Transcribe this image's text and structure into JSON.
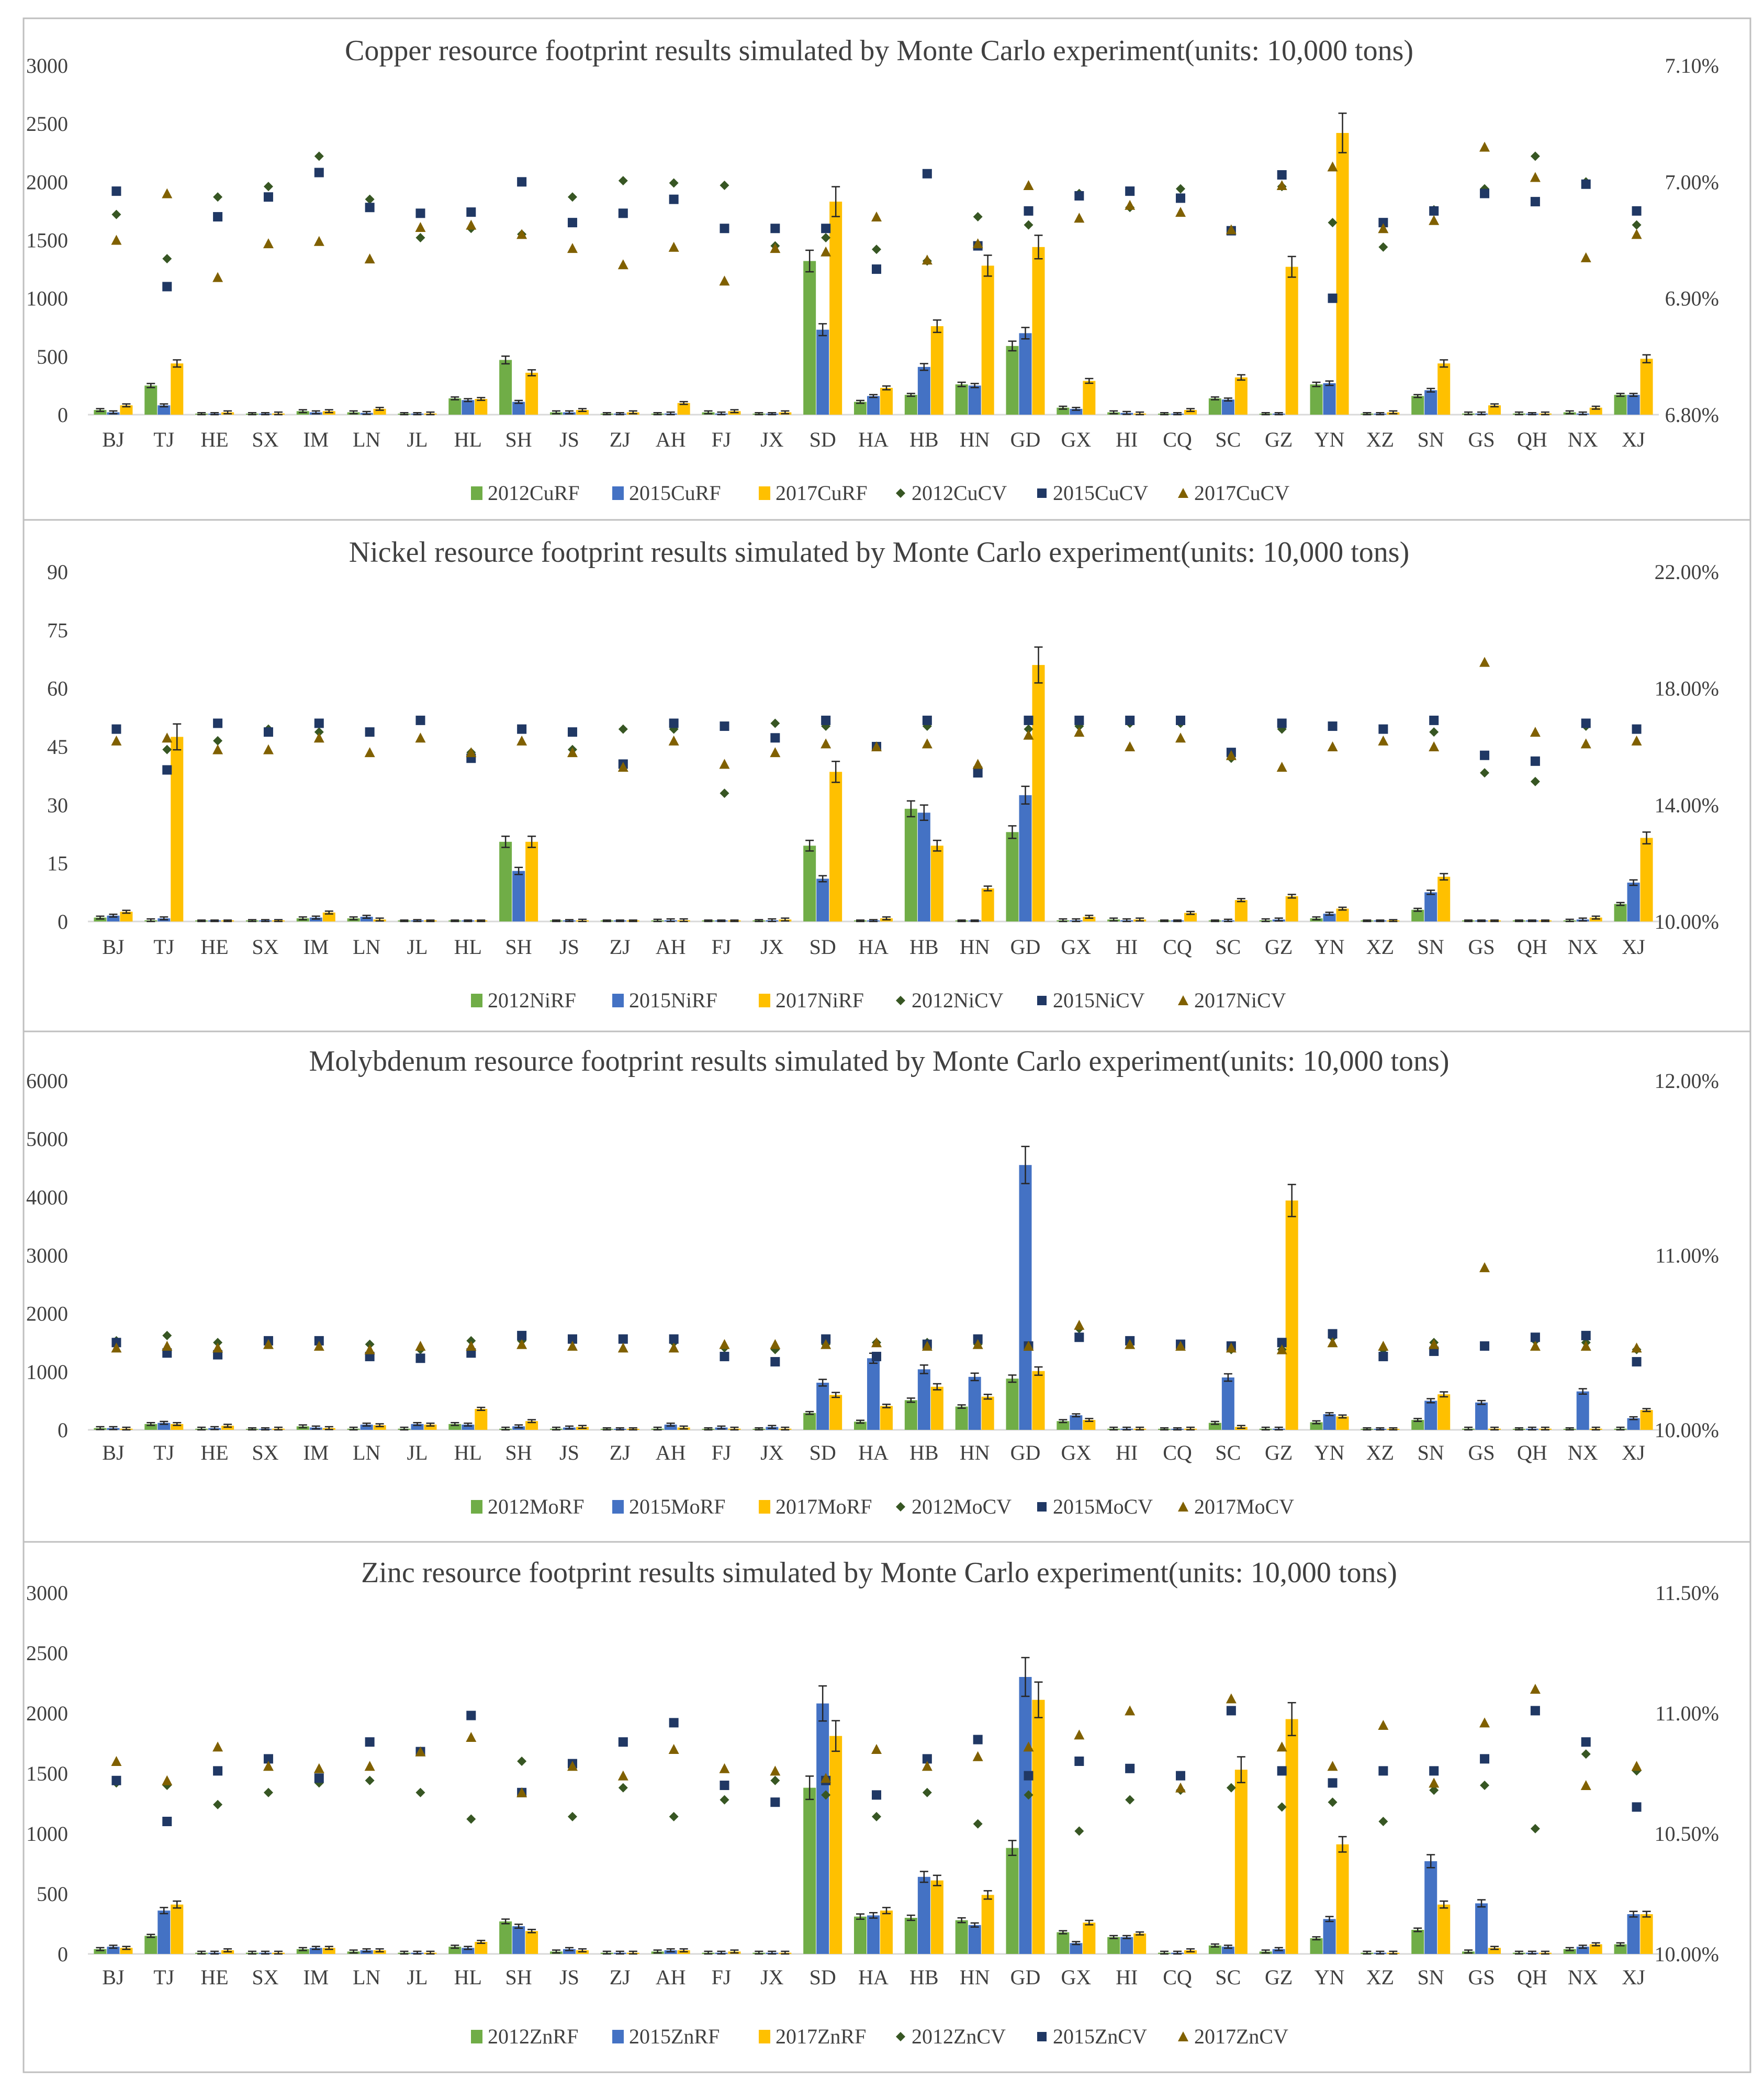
{
  "figure": {
    "categories": [
      "BJ",
      "TJ",
      "HE",
      "SX",
      "IM",
      "LN",
      "JL",
      "HL",
      "SH",
      "JS",
      "ZJ",
      "AH",
      "FJ",
      "JX",
      "SD",
      "HA",
      "HB",
      "HN",
      "GD",
      "GX",
      "HI",
      "CQ",
      "SC",
      "GZ",
      "YN",
      "XZ",
      "SN",
      "GS",
      "QH",
      "NX",
      "XJ"
    ],
    "colors": {
      "rf_2012": "#70ad47",
      "rf_2015": "#4472c4",
      "rf_2017": "#ffc000",
      "cv_2012": "#375623",
      "cv_2015": "#203864",
      "cv_2017": "#806000",
      "axis": "#d9d9d9",
      "text": "#404040",
      "border": "#bfbfbf"
    }
  },
  "chart_data": [
    {
      "type": "bar",
      "title": "Copper resource footprint results simulated by Monte Carlo experiment(units:  10,000 tons)",
      "ylim": [
        0,
        3000
      ],
      "y_ticks": [
        "0",
        "500",
        "1000",
        "1500",
        "2000",
        "2500",
        "3000"
      ],
      "y2lim": [
        6.8,
        7.1
      ],
      "y2_ticks": [
        "6.80%",
        "6.90%",
        "7.00%",
        "7.10%"
      ],
      "legend": [
        "2012CuRF",
        "2015CuRF",
        "2017CuRF",
        "2012CuCV",
        "2015CuCV",
        "2017CuCV"
      ],
      "series": [
        {
          "name": "2012CuRF",
          "kind": "bar",
          "values": [
            40,
            250,
            5,
            5,
            30,
            20,
            5,
            140,
            470,
            20,
            5,
            5,
            20,
            5,
            1320,
            110,
            170,
            260,
            590,
            60,
            20,
            5,
            140,
            5,
            260,
            5,
            160,
            10,
            10,
            20,
            170
          ]
        },
        {
          "name": "2015CuRF",
          "kind": "bar",
          "values": [
            20,
            80,
            5,
            5,
            20,
            15,
            5,
            125,
            110,
            20,
            5,
            10,
            10,
            5,
            730,
            160,
            410,
            250,
            700,
            50,
            15,
            5,
            130,
            5,
            270,
            5,
            210,
            10,
            5,
            10,
            170
          ]
        },
        {
          "name": "2017CuRF",
          "kind": "bar",
          "values": [
            80,
            440,
            20,
            10,
            30,
            50,
            10,
            135,
            360,
            40,
            20,
            100,
            30,
            20,
            1830,
            230,
            760,
            1280,
            1440,
            290,
            10,
            40,
            320,
            1270,
            2420,
            20,
            440,
            80,
            10,
            60,
            480
          ]
        },
        {
          "name": "2012CuCV",
          "kind": "marker",
          "marker": "diamond",
          "values": [
            6.972,
            6.934,
            6.987,
            6.996,
            7.022,
            6.985,
            6.952,
            6.96,
            6.955,
            6.987,
            7.001,
            6.999,
            6.997,
            6.945,
            6.952,
            6.942,
            6.932,
            6.97,
            6.963,
            6.99,
            6.978,
            6.994,
            6.958,
            6.996,
            6.965,
            6.944,
            6.976,
            6.994,
            7.022,
            7.0,
            6.963
          ]
        },
        {
          "name": "2015CuCV",
          "kind": "marker",
          "marker": "square",
          "values": [
            6.992,
            6.91,
            6.97,
            6.987,
            7.008,
            6.978,
            6.973,
            6.974,
            7.0,
            6.965,
            6.973,
            6.985,
            6.96,
            6.96,
            6.96,
            6.925,
            7.007,
            6.945,
            6.975,
            6.988,
            6.992,
            6.986,
            6.958,
            7.006,
            6.9,
            6.965,
            6.975,
            6.99,
            6.983,
            6.998,
            6.975
          ]
        },
        {
          "name": "2017CuCV",
          "kind": "marker",
          "marker": "triangle",
          "values": [
            6.95,
            6.99,
            6.918,
            6.947,
            6.949,
            6.934,
            6.961,
            6.963,
            6.955,
            6.943,
            6.929,
            6.944,
            6.915,
            6.943,
            6.94,
            6.97,
            6.933,
            6.947,
            6.997,
            6.969,
            6.98,
            6.974,
            6.959,
            6.997,
            7.013,
            6.96,
            6.967,
            7.03,
            7.004,
            6.935,
            6.955
          ]
        }
      ]
    },
    {
      "type": "bar",
      "title": "Nickel resource footprint results simulated by Monte Carlo experiment(units:  10,000 tons)",
      "ylim": [
        0,
        90
      ],
      "y_ticks": [
        "0",
        "15",
        "30",
        "45",
        "60",
        "75",
        "90"
      ],
      "y2lim": [
        10.0,
        22.0
      ],
      "y2_ticks": [
        "10.00%",
        "14.00%",
        "18.00%",
        "22.00%"
      ],
      "legend": [
        "2012NiRF",
        "2015NiRF",
        "2017NiRF",
        "2012NiCV",
        "2015NiCV",
        "2017NiCV"
      ],
      "series": [
        {
          "name": "2012NiRF",
          "kind": "bar",
          "values": [
            1,
            0.3,
            0,
            0.1,
            0.8,
            0.8,
            0,
            0,
            20.5,
            0,
            0,
            0.2,
            0,
            0.1,
            19.5,
            0,
            29,
            0,
            23,
            0.3,
            0.5,
            0,
            0,
            0.3,
            0.8,
            0,
            3,
            0,
            0,
            0.2,
            4.5
          ]
        },
        {
          "name": "2015NiRF",
          "kind": "bar",
          "values": [
            1.5,
            0.8,
            0,
            0.1,
            1,
            1.2,
            0.1,
            0,
            13,
            0.1,
            0,
            0.3,
            0,
            0.3,
            11,
            0.1,
            28,
            0,
            32.5,
            0.3,
            0.3,
            0,
            0.2,
            0.5,
            2,
            0,
            7.5,
            0,
            0,
            0.5,
            10
          ]
        },
        {
          "name": "2017NiRF",
          "kind": "bar",
          "values": [
            2.5,
            47.5,
            0,
            0.1,
            2.3,
            0.5,
            0,
            0,
            20.5,
            0.2,
            0,
            0.3,
            0,
            0.5,
            38.5,
            0.8,
            19.5,
            8.5,
            66,
            1.2,
            0.5,
            2.2,
            5.5,
            6.5,
            3.3,
            0.1,
            11.5,
            0,
            0,
            1,
            21.5
          ]
        },
        {
          "name": "2012NiCV",
          "kind": "marker",
          "marker": "diamond",
          "values": [
            16.6,
            15.9,
            16.2,
            16.6,
            16.5,
            16.5,
            16.9,
            15.8,
            16.6,
            15.9,
            16.6,
            16.6,
            14.4,
            16.8,
            16.7,
            16.0,
            16.7,
            15.3,
            16.6,
            16.7,
            16.8,
            16.8,
            15.6,
            16.6,
            16.7,
            16.6,
            16.5,
            15.1,
            14.8,
            16.7,
            16.6
          ]
        },
        {
          "name": "2015NiCV",
          "kind": "marker",
          "marker": "square",
          "values": [
            16.6,
            15.2,
            16.8,
            16.5,
            16.8,
            16.5,
            16.9,
            15.6,
            16.6,
            16.5,
            15.4,
            16.8,
            16.7,
            16.3,
            16.9,
            16.0,
            16.9,
            15.1,
            16.9,
            16.9,
            16.9,
            16.9,
            15.8,
            16.8,
            16.7,
            16.6,
            16.9,
            15.7,
            15.5,
            16.8,
            16.6
          ]
        },
        {
          "name": "2017NiCV",
          "kind": "marker",
          "marker": "triangle",
          "values": [
            16.2,
            16.3,
            15.9,
            15.9,
            16.3,
            15.8,
            16.3,
            15.8,
            16.2,
            15.8,
            15.3,
            16.2,
            15.4,
            15.8,
            16.1,
            16.0,
            16.1,
            15.4,
            16.4,
            16.5,
            16.0,
            16.3,
            15.7,
            15.3,
            16.0,
            16.2,
            16.0,
            18.9,
            16.5,
            16.1,
            16.2
          ]
        }
      ]
    },
    {
      "type": "bar",
      "title": "Molybdenum resource footprint results simulated by Monte Carlo experiment(units:  10,000 tons)",
      "ylim": [
        0,
        6000
      ],
      "y_ticks": [
        "0",
        "1000",
        "2000",
        "3000",
        "4000",
        "5000",
        "6000"
      ],
      "y2lim": [
        10.0,
        12.0
      ],
      "y2_ticks": [
        "10.00%",
        "11.00%",
        "12.00%"
      ],
      "legend": [
        "2012MoRF",
        "2015MoRF",
        "2017MoRF",
        "2012MoCV",
        "2015MoCV",
        "2017MoCV"
      ],
      "series": [
        {
          "name": "2012MoRF",
          "kind": "bar",
          "values": [
            30,
            100,
            20,
            10,
            60,
            20,
            20,
            100,
            20,
            20,
            10,
            20,
            10,
            10,
            290,
            140,
            510,
            400,
            880,
            150,
            20,
            10,
            120,
            20,
            130,
            10,
            170,
            20,
            10,
            10,
            20
          ]
        },
        {
          "name": "2015MoRF",
          "kind": "bar",
          "values": [
            30,
            120,
            30,
            10,
            40,
            90,
            100,
            90,
            60,
            40,
            10,
            90,
            40,
            50,
            810,
            1230,
            1040,
            910,
            4550,
            250,
            20,
            10,
            900,
            20,
            270,
            10,
            500,
            470,
            20,
            660,
            200
          ]
        },
        {
          "name": "2017MoRF",
          "kind": "bar",
          "values": [
            20,
            100,
            70,
            20,
            30,
            80,
            90,
            360,
            150,
            50,
            10,
            40,
            20,
            20,
            600,
            410,
            740,
            570,
            1010,
            170,
            20,
            20,
            50,
            3940,
            230,
            10,
            610,
            20,
            20,
            20,
            340
          ]
        },
        {
          "name": "2012MoCV",
          "kind": "marker",
          "marker": "diamond",
          "values": [
            10.51,
            10.54,
            10.5,
            10.51,
            10.5,
            10.49,
            10.46,
            10.51,
            10.51,
            10.51,
            10.52,
            10.5,
            10.47,
            10.46,
            10.49,
            10.5,
            10.5,
            10.49,
            10.48,
            10.58,
            10.5,
            10.48,
            10.46,
            10.46,
            10.53,
            10.46,
            10.5,
            10.48,
            10.51,
            10.5,
            10.46
          ]
        },
        {
          "name": "2015MoCV",
          "kind": "marker",
          "marker": "square",
          "values": [
            10.5,
            10.44,
            10.43,
            10.51,
            10.51,
            10.42,
            10.41,
            10.44,
            10.54,
            10.52,
            10.52,
            10.52,
            10.42,
            10.39,
            10.52,
            10.42,
            10.49,
            10.52,
            10.48,
            10.53,
            10.51,
            10.49,
            10.48,
            10.5,
            10.55,
            10.42,
            10.45,
            10.48,
            10.53,
            10.54,
            10.39
          ]
        },
        {
          "name": "2017MoCV",
          "kind": "marker",
          "marker": "triangle",
          "values": [
            10.47,
            10.48,
            10.47,
            10.49,
            10.48,
            10.46,
            10.48,
            10.48,
            10.49,
            10.48,
            10.47,
            10.47,
            10.49,
            10.49,
            10.49,
            10.5,
            10.48,
            10.49,
            10.48,
            10.6,
            10.49,
            10.48,
            10.47,
            10.46,
            10.5,
            10.48,
            10.49,
            10.93,
            10.48,
            10.48,
            10.47
          ]
        }
      ]
    },
    {
      "type": "bar",
      "title": "Zinc resource footprint results simulated by Monte Carlo experiment(units:  10,000 tons)",
      "ylim": [
        0,
        3000
      ],
      "y_ticks": [
        "0",
        "500",
        "1000",
        "1500",
        "2000",
        "2500",
        "3000"
      ],
      "y2lim": [
        10.0,
        11.5
      ],
      "y2_ticks": [
        "10.00%",
        "10.50%",
        "11.00%",
        "11.50%"
      ],
      "legend": [
        "2012ZnRF",
        "2015ZnRF",
        "2017ZnRF",
        "2012ZnCV",
        "2015ZnCV",
        "2017ZnCV"
      ],
      "series": [
        {
          "name": "2012ZnRF",
          "kind": "bar",
          "values": [
            40,
            150,
            10,
            10,
            40,
            20,
            10,
            60,
            270,
            20,
            10,
            20,
            10,
            10,
            1380,
            310,
            300,
            280,
            880,
            180,
            140,
            10,
            70,
            20,
            130,
            10,
            200,
            20,
            10,
            40,
            80
          ]
        },
        {
          "name": "2015ZnRF",
          "kind": "bar",
          "values": [
            60,
            360,
            10,
            10,
            50,
            30,
            10,
            50,
            230,
            40,
            10,
            30,
            10,
            10,
            2080,
            320,
            640,
            240,
            2300,
            90,
            140,
            10,
            60,
            40,
            290,
            10,
            770,
            420,
            10,
            60,
            330
          ]
        },
        {
          "name": "2017ZnRF",
          "kind": "bar",
          "values": [
            50,
            410,
            30,
            10,
            50,
            30,
            10,
            100,
            190,
            30,
            10,
            30,
            20,
            10,
            1810,
            360,
            610,
            490,
            2110,
            260,
            170,
            30,
            1530,
            1950,
            910,
            10,
            410,
            50,
            10,
            80,
            330
          ]
        },
        {
          "name": "2012ZnCV",
          "kind": "marker",
          "marker": "diamond",
          "values": [
            10.71,
            10.7,
            10.62,
            10.67,
            10.71,
            10.72,
            10.67,
            10.56,
            10.8,
            10.57,
            10.69,
            10.57,
            10.64,
            10.72,
            10.66,
            10.57,
            10.67,
            10.54,
            10.66,
            10.51,
            10.64,
            10.68,
            10.69,
            10.61,
            10.63,
            10.55,
            10.68,
            10.7,
            10.52,
            10.83,
            10.76
          ]
        },
        {
          "name": "2015ZnCV",
          "kind": "marker",
          "marker": "square",
          "values": [
            10.72,
            10.55,
            10.76,
            10.81,
            10.73,
            10.88,
            10.84,
            10.99,
            10.67,
            10.79,
            10.88,
            10.96,
            10.7,
            10.63,
            10.72,
            10.66,
            10.81,
            10.89,
            10.74,
            10.8,
            10.77,
            10.74,
            11.01,
            10.76,
            10.71,
            10.76,
            10.76,
            10.81,
            11.01,
            10.88,
            10.61
          ]
        },
        {
          "name": "2017ZnCV",
          "kind": "marker",
          "marker": "triangle",
          "values": [
            10.8,
            10.72,
            10.86,
            10.78,
            10.77,
            10.78,
            10.84,
            10.9,
            10.67,
            10.78,
            10.74,
            10.85,
            10.77,
            10.76,
            10.73,
            10.85,
            10.78,
            10.82,
            10.86,
            10.91,
            11.01,
            10.69,
            11.06,
            10.86,
            10.78,
            10.95,
            10.71,
            10.96,
            11.1,
            10.7,
            10.78
          ]
        }
      ]
    }
  ]
}
